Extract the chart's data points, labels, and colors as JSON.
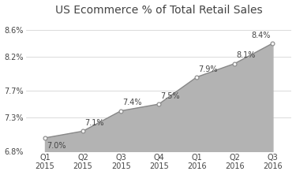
{
  "title": "US Ecommerce % of Total Retail Sales",
  "categories": [
    "Q1\n2015",
    "Q2\n2015",
    "Q3\n2015",
    "Q4\n2015",
    "Q1\n2016",
    "Q2\n2016",
    "Q3\n2016"
  ],
  "values": [
    7.0,
    7.1,
    7.4,
    7.5,
    7.9,
    8.1,
    8.4
  ],
  "labels": [
    "7.0%",
    "7.1%",
    "7.4%",
    "7.5%",
    "7.9%",
    "8.1%",
    "8.4%"
  ],
  "label_ha": [
    "left",
    "left",
    "left",
    "left",
    "left",
    "left",
    "right"
  ],
  "label_va": [
    "top",
    "bottom",
    "bottom",
    "bottom",
    "bottom",
    "bottom",
    "bottom"
  ],
  "label_dx": [
    0.05,
    0.05,
    0.05,
    0.05,
    0.05,
    0.05,
    -0.05
  ],
  "label_dy": [
    -0.06,
    0.06,
    0.06,
    0.06,
    0.06,
    0.06,
    0.06
  ],
  "ylim": [
    6.8,
    8.75
  ],
  "yticks": [
    6.8,
    7.3,
    7.7,
    8.2,
    8.6
  ],
  "ytick_labels": [
    "6.8%",
    "7.3%",
    "7.7%",
    "8.2%",
    "8.6%"
  ],
  "fill_color": "#b3b3b3",
  "line_color": "#888888",
  "marker_edge_color": "#888888",
  "marker_face_color": "#f5f5f5",
  "bg_color": "#ffffff",
  "grid_color": "#cccccc",
  "text_color": "#444444",
  "title_fontsize": 10,
  "label_fontsize": 7,
  "tick_fontsize": 7
}
